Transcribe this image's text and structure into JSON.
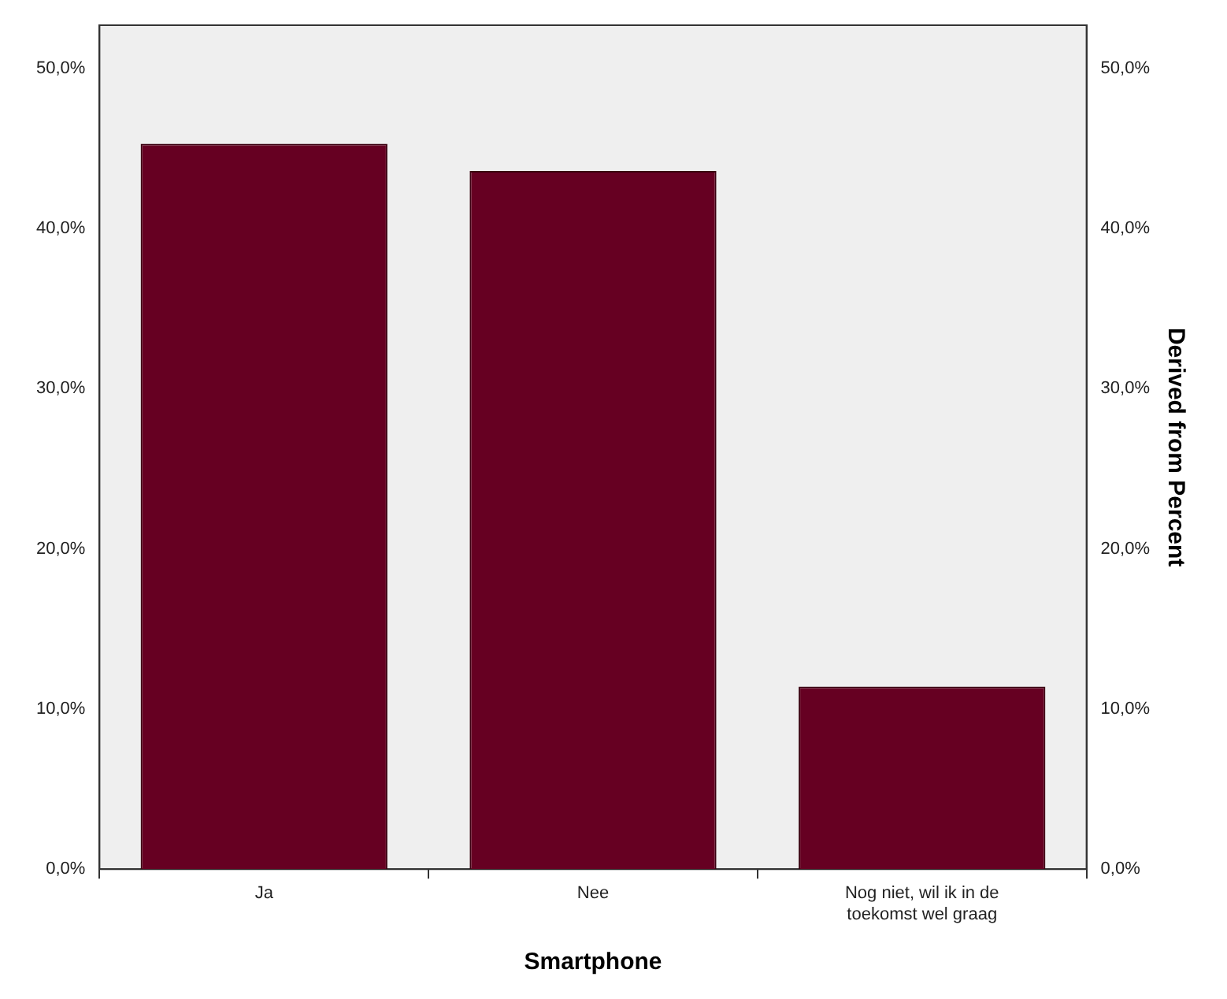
{
  "chart_data": {
    "type": "bar",
    "xlabel": "Smartphone",
    "y2label": "Derived from Percent",
    "categories": [
      "Ja",
      "Nee",
      "Nog niet, wil ik in de toekomst wel graag"
    ],
    "values": [
      45.3,
      43.6,
      11.4
    ],
    "color": "#660022",
    "ylim": [
      0,
      52.7
    ],
    "yticks": [
      {
        "value": 0,
        "label": "0,0%"
      },
      {
        "value": 10,
        "label": "10,0%"
      },
      {
        "value": 20,
        "label": "20,0%"
      },
      {
        "value": 30,
        "label": "30,0%"
      },
      {
        "value": 40,
        "label": "40,0%"
      },
      {
        "value": 50,
        "label": "50,0%"
      }
    ],
    "y2lim": [
      0,
      52.7
    ],
    "y2ticks": [
      {
        "value": 0,
        "label": "0,0%"
      },
      {
        "value": 10,
        "label": "10,0%"
      },
      {
        "value": 20,
        "label": "20,0%"
      },
      {
        "value": 30,
        "label": "30,0%"
      },
      {
        "value": 40,
        "label": "40,0%"
      },
      {
        "value": 50,
        "label": "50,0%"
      }
    ],
    "grid": false,
    "legend": false
  }
}
